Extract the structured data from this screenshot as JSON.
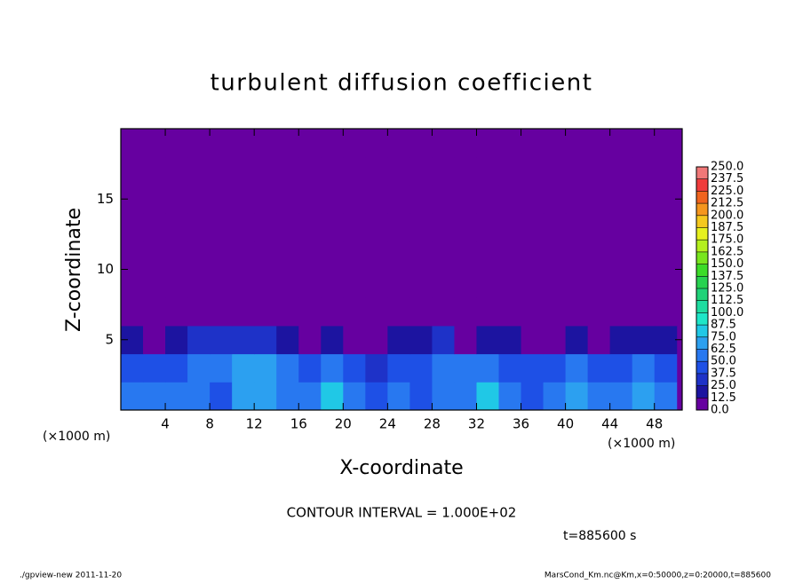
{
  "chart_data": {
    "type": "contour",
    "title": "turbulent diffusion coefficient",
    "xlabel": "X-coordinate",
    "ylabel": "Z-coordinate",
    "x_unit": "(×1000 m)",
    "y_unit": "(×1000 m)",
    "annotation": "CONTOUR INTERVAL = 1.000E+02",
    "time_label": "t=885600 s",
    "footer_left": "./gpview-new  2011-11-20",
    "footer_right": "MarsCond_Km.nc@Km,x=0:50000,z=0:20000,t=885600",
    "xlim": [
      0,
      50.5
    ],
    "ylim": [
      0,
      20
    ],
    "xticks": [
      4,
      8,
      12,
      16,
      20,
      24,
      28,
      32,
      36,
      40,
      44,
      48
    ],
    "yticks": [
      5,
      10,
      15
    ],
    "x": [
      1,
      3,
      5,
      7,
      9,
      11,
      13,
      15,
      17,
      19,
      21,
      23,
      25,
      27,
      29,
      31,
      33,
      35,
      37,
      39,
      41,
      43,
      45,
      47,
      49
    ],
    "y": [
      1,
      3,
      5,
      7,
      9,
      11,
      13,
      15,
      17,
      19
    ],
    "z": [
      [
        55,
        60,
        55,
        50,
        45,
        65,
        70,
        60,
        55,
        75,
        55,
        45,
        50,
        45,
        55,
        60,
        80,
        55,
        45,
        50,
        70,
        55,
        60,
        65,
        50
      ],
      [
        45,
        40,
        45,
        50,
        55,
        65,
        70,
        55,
        40,
        55,
        45,
        35,
        40,
        45,
        50,
        55,
        50,
        45,
        40,
        40,
        50,
        40,
        45,
        55,
        45
      ],
      [
        15,
        10,
        20,
        30,
        25,
        35,
        30,
        15,
        5,
        15,
        10,
        5,
        15,
        20,
        25,
        10,
        15,
        20,
        10,
        5,
        15,
        10,
        15,
        20,
        15
      ],
      [
        0,
        0,
        0,
        0,
        0,
        0,
        0,
        0,
        0,
        0,
        0,
        0,
        0,
        0,
        0,
        0,
        0,
        0,
        0,
        0,
        0,
        0,
        0,
        0,
        0
      ],
      [
        0,
        0,
        0,
        0,
        0,
        0,
        0,
        0,
        0,
        0,
        0,
        0,
        0,
        0,
        0,
        0,
        0,
        0,
        0,
        0,
        0,
        0,
        0,
        0,
        0
      ],
      [
        0,
        0,
        0,
        0,
        0,
        0,
        0,
        0,
        0,
        0,
        0,
        0,
        0,
        0,
        0,
        0,
        0,
        0,
        0,
        0,
        0,
        0,
        0,
        0,
        0
      ],
      [
        0,
        0,
        0,
        0,
        0,
        0,
        0,
        0,
        0,
        0,
        0,
        0,
        0,
        0,
        0,
        0,
        0,
        0,
        0,
        0,
        0,
        0,
        0,
        0,
        0
      ],
      [
        0,
        0,
        0,
        0,
        0,
        0,
        0,
        0,
        0,
        0,
        0,
        0,
        0,
        0,
        0,
        0,
        0,
        0,
        0,
        0,
        0,
        0,
        0,
        0,
        0
      ],
      [
        0,
        0,
        0,
        0,
        0,
        0,
        0,
        0,
        0,
        0,
        0,
        0,
        0,
        0,
        0,
        0,
        0,
        0,
        0,
        0,
        0,
        0,
        0,
        0,
        0
      ],
      [
        0,
        0,
        0,
        0,
        0,
        0,
        0,
        0,
        0,
        0,
        0,
        0,
        0,
        0,
        0,
        0,
        0,
        0,
        0,
        0,
        0,
        0,
        0,
        0,
        0
      ]
    ],
    "levels": [
      {
        "value": 0,
        "label": "0.0"
      },
      12.5,
      {
        "value": 25,
        "label": "25.0"
      },
      37.5,
      {
        "value": 50,
        "label": "50.0"
      },
      62.5,
      {
        "value": 75,
        "label": "75.0"
      },
      87.5,
      {
        "value": 100,
        "label": "100.0"
      },
      112.5,
      {
        "value": 125,
        "label": "125.0"
      },
      137.5,
      {
        "value": 150,
        "label": "150.0"
      },
      162.5,
      {
        "value": 175,
        "label": "175.0"
      },
      187.5,
      {
        "value": 200,
        "label": "200.0"
      },
      212.5,
      {
        "value": 225,
        "label": "225.0"
      },
      237.5,
      {
        "value": 250,
        "label": "250.0"
      }
    ],
    "colors": [
      "#6600a0",
      "#1c14a0",
      "#1e32c8",
      "#1e50e6",
      "#2878f0",
      "#2ca0f0",
      "#20c8e6",
      "#1ee6c8",
      "#1edca0",
      "#20d278",
      "#28d250",
      "#3cdc28",
      "#78e61e",
      "#b4f01e",
      "#e6f01e",
      "#f5c81e",
      "#f5961e",
      "#f0641e",
      "#f03c3c",
      "#f07878"
    ]
  }
}
